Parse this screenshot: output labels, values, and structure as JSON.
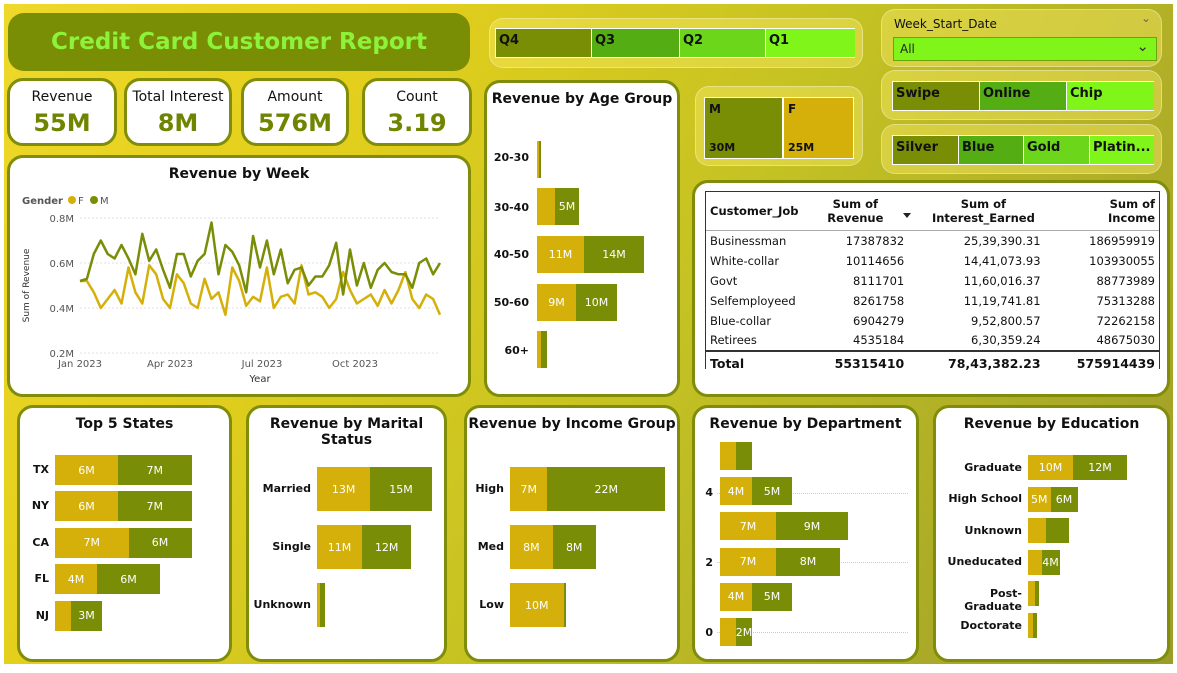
{
  "report": {
    "title": "Credit Card Customer Report"
  },
  "kpis": [
    {
      "label": "Revenue",
      "value": "55M"
    },
    {
      "label": "Total Interest",
      "value": "8M"
    },
    {
      "label": "Amount",
      "value": "576M"
    },
    {
      "label": "Count",
      "value": "3.19"
    }
  ],
  "quarter_slicer": [
    "Q4",
    "Q3",
    "Q2",
    "Q1"
  ],
  "week_slicer": {
    "label": "Week_Start_Date",
    "value": "All"
  },
  "gender_tiles": [
    {
      "label": "M",
      "value": "30M"
    },
    {
      "label": "F",
      "value": "25M"
    }
  ],
  "card_type_slicer": [
    "Swipe",
    "Online",
    "Chip"
  ],
  "category_slicer": [
    "Silver",
    "Blue",
    "Gold",
    "Platin..."
  ],
  "colors": {
    "female": "#d5b00a",
    "male": "#7a8d07",
    "accent": "#8cf23a"
  },
  "age_chart": {
    "title": "Revenue by Age Group",
    "rows": [
      {
        "label": "20-30",
        "f": "",
        "m": ""
      },
      {
        "label": "30-40",
        "f": "",
        "m": "5M"
      },
      {
        "label": "40-50",
        "f": "11M",
        "m": "14M"
      },
      {
        "label": "50-60",
        "f": "9M",
        "m": "10M"
      },
      {
        "label": "60+",
        "f": "",
        "m": ""
      }
    ]
  },
  "job_table": {
    "headers": [
      "Customer_Job",
      "Sum of Revenue",
      "Sum of Interest_Earned",
      "Sum of Income"
    ],
    "rows": [
      [
        "Businessman",
        "17387832",
        "25,39,390.31",
        "186959919"
      ],
      [
        "White-collar",
        "10114656",
        "14,41,073.93",
        "103930055"
      ],
      [
        "Govt",
        "8111701",
        "11,60,016.37",
        "88773989"
      ],
      [
        "Selfemployeed",
        "8261758",
        "11,19,741.81",
        "75313288"
      ],
      [
        "Blue-collar",
        "6904279",
        "9,52,800.57",
        "72262158"
      ],
      [
        "Retirees",
        "4535184",
        "6,30,359.24",
        "48675030"
      ]
    ],
    "total": [
      "Total",
      "55315410",
      "78,43,382.23",
      "575914439"
    ]
  },
  "chart_data": [
    {
      "type": "line",
      "title": "Revenue by Week",
      "xlabel": "Year",
      "ylabel": "Sum of Revenue",
      "legend_title": "Gender",
      "x_ticks": [
        "Jan 2023",
        "Apr 2023",
        "Jul 2023",
        "Oct 2023"
      ],
      "y_ticks": [
        "0.2M",
        "0.4M",
        "0.6M",
        "0.8M"
      ],
      "ylim": [
        0.2,
        0.8
      ],
      "series": [
        {
          "name": "F",
          "values": [
            0.52,
            0.52,
            0.47,
            0.4,
            0.44,
            0.48,
            0.42,
            0.58,
            0.47,
            0.42,
            0.59,
            0.55,
            0.44,
            0.4,
            0.55,
            0.51,
            0.42,
            0.4,
            0.53,
            0.44,
            0.47,
            0.37,
            0.58,
            0.52,
            0.41,
            0.45,
            0.43,
            0.58,
            0.4,
            0.45,
            0.46,
            0.42,
            0.59,
            0.46,
            0.47,
            0.45,
            0.4,
            0.44,
            0.56,
            0.48,
            0.42,
            0.44,
            0.46,
            0.41,
            0.48,
            0.42,
            0.48,
            0.56,
            0.44,
            0.4,
            0.46,
            0.44,
            0.37
          ]
        },
        {
          "name": "M",
          "values": [
            0.52,
            0.53,
            0.64,
            0.7,
            0.64,
            0.62,
            0.68,
            0.62,
            0.55,
            0.73,
            0.61,
            0.66,
            0.57,
            0.49,
            0.64,
            0.64,
            0.54,
            0.61,
            0.64,
            0.78,
            0.55,
            0.68,
            0.65,
            0.59,
            0.47,
            0.72,
            0.58,
            0.7,
            0.55,
            0.66,
            0.51,
            0.57,
            0.58,
            0.5,
            0.54,
            0.54,
            0.59,
            0.69,
            0.46,
            0.66,
            0.5,
            0.6,
            0.49,
            0.57,
            0.6,
            0.56,
            0.55,
            0.55,
            0.49,
            0.6,
            0.62,
            0.55,
            0.6
          ]
        }
      ]
    },
    {
      "type": "bar",
      "title": "Top 5 States",
      "categories": [
        "TX",
        "NY",
        "CA",
        "FL",
        "NJ"
      ],
      "series": [
        {
          "name": "F",
          "values": [
            6,
            6,
            7,
            4,
            1.5
          ]
        },
        {
          "name": "M",
          "values": [
            7,
            7,
            6,
            6,
            3
          ]
        }
      ],
      "labels": {
        "F": [
          "6M",
          "6M",
          "7M",
          "4M",
          ""
        ],
        "M": [
          "7M",
          "7M",
          "6M",
          "6M",
          "3M"
        ]
      }
    },
    {
      "type": "bar",
      "title": "Revenue by Marital Status",
      "categories": [
        "Married",
        "Single",
        "Unknown"
      ],
      "series": [
        {
          "name": "F",
          "values": [
            13,
            11,
            0.8
          ]
        },
        {
          "name": "M",
          "values": [
            15,
            12,
            1.2
          ]
        }
      ],
      "labels": {
        "F": [
          "13M",
          "11M",
          ""
        ],
        "M": [
          "15M",
          "12M",
          ""
        ]
      }
    },
    {
      "type": "bar",
      "title": "Revenue by Income Group",
      "categories": [
        "High",
        "Med",
        "Low"
      ],
      "series": [
        {
          "name": "F",
          "values": [
            7,
            8,
            10
          ]
        },
        {
          "name": "M",
          "values": [
            22,
            8,
            0.5
          ]
        }
      ],
      "labels": {
        "F": [
          "7M",
          "8M",
          "10M"
        ],
        "M": [
          "22M",
          "8M",
          ""
        ]
      }
    },
    {
      "type": "bar",
      "title": "Revenue by Department",
      "y_ticks": [
        "4",
        "2",
        "0"
      ],
      "categories": [
        "",
        "",
        "",
        "",
        "",
        ""
      ],
      "series": [
        {
          "name": "F",
          "values": [
            2,
            4,
            7,
            7,
            4,
            2
          ]
        },
        {
          "name": "M",
          "values": [
            2,
            5,
            9,
            8,
            5,
            2
          ]
        }
      ],
      "labels": {
        "F": [
          "",
          "4M",
          "7M",
          "7M",
          "4M",
          ""
        ],
        "M": [
          "",
          "5M",
          "9M",
          "8M",
          "5M",
          "2M"
        ]
      }
    },
    {
      "type": "bar",
      "title": "Revenue by Education",
      "categories": [
        "Graduate",
        "High School",
        "Unknown",
        "Uneducated",
        "Post-Graduate",
        "Doctorate"
      ],
      "series": [
        {
          "name": "F",
          "values": [
            10,
            5,
            4,
            3,
            1.5,
            1
          ]
        },
        {
          "name": "M",
          "values": [
            12,
            6,
            5,
            4,
            1,
            1
          ]
        }
      ],
      "labels": {
        "F": [
          "10M",
          "5M",
          "",
          "",
          "",
          ""
        ],
        "M": [
          "12M",
          "6M",
          "",
          "4M",
          "",
          ""
        ]
      }
    }
  ]
}
